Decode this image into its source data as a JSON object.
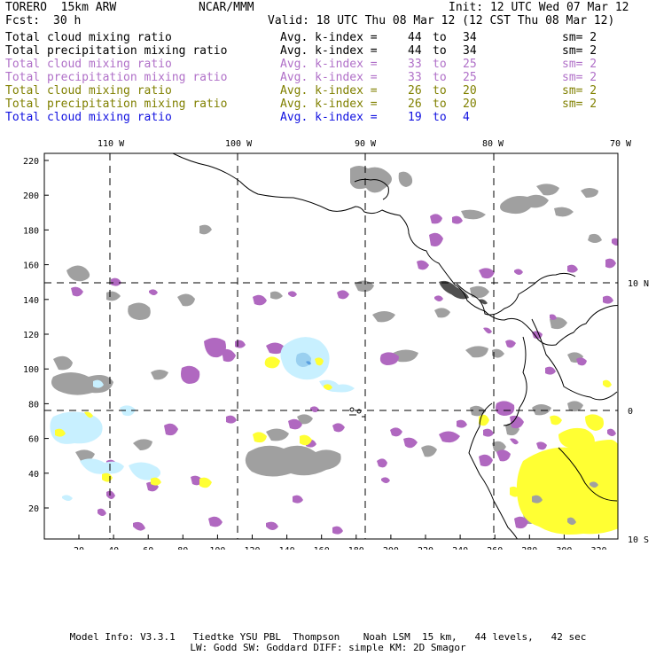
{
  "header": {
    "model": "TORERO  15km ARW",
    "center": "NCAR/MMM",
    "init": "Init: 12 UTC Wed 07 Mar 12",
    "fcst_label": "Fcst:",
    "fcst_value": "30 h",
    "valid": "Valid: 18 UTC Thu 08 Mar 12 (12 CST Thu 08 Mar 12)"
  },
  "legend": [
    {
      "field": "Total cloud mixing ratio",
      "kindex": "Avg. k-index =",
      "from": "44",
      "to_word": "to",
      "to": "34",
      "sm": "sm= 2",
      "color": "#000000"
    },
    {
      "field": "Total precipitation mixing ratio",
      "kindex": "Avg. k-index =",
      "from": "44",
      "to_word": "to",
      "to": "34",
      "sm": "sm= 2",
      "color": "#000000"
    },
    {
      "field": "Total cloud mixing ratio",
      "kindex": "Avg. k-index =",
      "from": "33",
      "to_word": "to",
      "to": "25",
      "sm": "sm= 2",
      "color": "#b070c8"
    },
    {
      "field": "Total precipitation mixing ratio",
      "kindex": "Avg. k-index =",
      "from": "33",
      "to_word": "to",
      "to": "25",
      "sm": "sm= 2",
      "color": "#b070c8"
    },
    {
      "field": "Total cloud mixing ratio",
      "kindex": "Avg. k-index =",
      "from": "26",
      "to_word": "to",
      "to": "20",
      "sm": "sm= 2",
      "color": "#808000"
    },
    {
      "field": "Total precipitation mixing ratio",
      "kindex": "Avg. k-index =",
      "from": "26",
      "to_word": "to",
      "to": "20",
      "sm": "sm= 2",
      "color": "#808000"
    },
    {
      "field": "Total cloud mixing ratio",
      "kindex": "Avg. k-index =",
      "from": "19",
      "to_word": "to",
      "to": "4",
      "sm": "",
      "color": "#1010e0"
    }
  ],
  "map": {
    "lon_labels": [
      "110 W",
      "100 W",
      "90 W",
      "80 W",
      "70 W"
    ],
    "lat_labels": [
      "10 N",
      "0",
      "10 S"
    ],
    "y_ticks": [
      "220",
      "200",
      "180",
      "160",
      "140",
      "120",
      "100",
      "80",
      "60",
      "40",
      "20"
    ],
    "x_ticks": [
      "20",
      "40",
      "60",
      "80",
      "100",
      "120",
      "140",
      "160",
      "180",
      "200",
      "220",
      "240",
      "260",
      "280",
      "300",
      "320"
    ],
    "colors": {
      "gray": "#a0a0a0",
      "violet": "#b068c0",
      "yellow": "#ffff33",
      "lightblue": "#c8f0ff",
      "darkgray": "#606060"
    }
  },
  "footer": {
    "line1": "Model Info: V3.3.1   Tiedtke YSU PBL  Thompson    Noah LSM  15 km,   44 levels,   42 sec",
    "line2": "LW: Godd SW: Goddard DIFF: simple KM: 2D Smagor"
  }
}
